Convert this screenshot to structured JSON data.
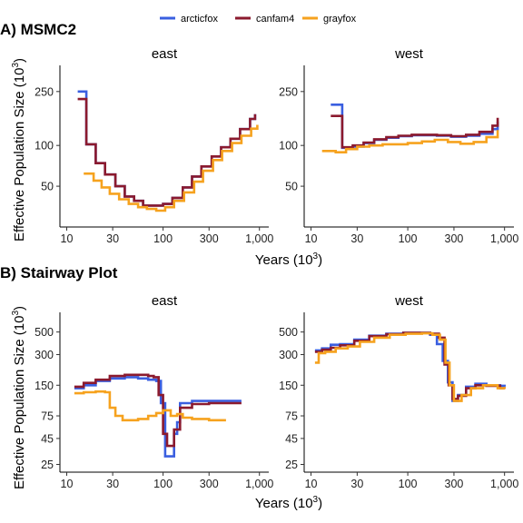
{
  "legend": {
    "items": [
      {
        "name": "arcticfox",
        "color": "#3a5fe0"
      },
      {
        "name": "canfam4",
        "color": "#8b1a2e"
      },
      {
        "name": "grayfox",
        "color": "#f6a21e"
      }
    ]
  },
  "panels": [
    {
      "label": "A) MSMC2",
      "y_label_main": "Effective Population Size (10",
      "y_label_exp": "3",
      "y_label_end": ")"
    },
    {
      "label": "B) Stairway Plot",
      "y_label_main": "Effective Population Size (10",
      "y_label_exp": "3",
      "y_label_end": ")"
    }
  ],
  "x_axis_label": {
    "main": "Years (10",
    "exp": "3",
    "end": ")"
  },
  "chart_data": [
    {
      "type": "line",
      "panel": "A) MSMC2",
      "facet": "east",
      "x_scale": "log",
      "y_scale": "log",
      "xlim": [
        8.5,
        1250
      ],
      "ylim": [
        25,
        390
      ],
      "x_ticks": [
        10,
        30,
        100,
        300,
        1000
      ],
      "x_tick_labels": [
        "10",
        "30",
        "100",
        "300",
        "1,000"
      ],
      "y_ticks": [
        50,
        100,
        250
      ],
      "y_tick_labels": [
        "50",
        "100",
        "250"
      ],
      "series": [
        {
          "name": "arcticfox",
          "color": "#3a5fe0",
          "step": true,
          "x": [
            13,
            16,
            20,
            25,
            32,
            40,
            50,
            62,
            80,
            100,
            125,
            160,
            200,
            250,
            320,
            400,
            500,
            630,
            800,
            900
          ],
          "y": [
            250,
            102,
            74,
            61,
            50,
            42,
            39,
            36,
            36,
            37,
            41,
            49,
            59,
            70,
            83,
            97,
            112,
            132,
            157,
            170
          ]
        },
        {
          "name": "canfam4",
          "color": "#8b1a2e",
          "step": true,
          "x": [
            13,
            16,
            20,
            25,
            32,
            40,
            50,
            62,
            80,
            100,
            125,
            160,
            200,
            250,
            320,
            400,
            500,
            630,
            800,
            900
          ],
          "y": [
            220,
            102,
            74,
            61,
            50,
            42,
            39,
            36,
            36,
            37,
            41,
            49,
            59,
            70,
            83,
            97,
            112,
            132,
            157,
            170
          ]
        },
        {
          "name": "grayfox",
          "color": "#f6a21e",
          "step": true,
          "x": [
            15,
            19,
            23,
            28,
            35,
            44,
            55,
            68,
            85,
            105,
            130,
            165,
            210,
            260,
            330,
            410,
            520,
            650,
            820,
            950
          ],
          "y": [
            62,
            55,
            49,
            44,
            40,
            37,
            35,
            34,
            33,
            35,
            39,
            45,
            54,
            65,
            78,
            91,
            104,
            118,
            133,
            142
          ]
        }
      ]
    },
    {
      "type": "line",
      "panel": "A) MSMC2",
      "facet": "west",
      "x_scale": "log",
      "y_scale": "log",
      "xlim": [
        8.5,
        1250
      ],
      "ylim": [
        25,
        390
      ],
      "x_ticks": [
        10,
        30,
        100,
        300,
        1000
      ],
      "x_tick_labels": [
        "10",
        "30",
        "100",
        "300",
        "1,000"
      ],
      "y_ticks": [
        50,
        100,
        250
      ],
      "y_tick_labels": [
        "50",
        "100",
        "250"
      ],
      "series": [
        {
          "name": "arcticfox",
          "color": "#3a5fe0",
          "step": true,
          "x": [
            16,
            21,
            27,
            35,
            45,
            60,
            80,
            110,
            150,
            200,
            280,
            400,
            550,
            750,
            850
          ],
          "y": [
            200,
            96,
            98,
            104,
            110,
            114,
            117,
            119,
            119,
            118,
            116,
            118,
            122,
            132,
            150
          ]
        },
        {
          "name": "canfam4",
          "color": "#8b1a2e",
          "step": true,
          "x": [
            16,
            21,
            27,
            35,
            45,
            60,
            80,
            110,
            150,
            200,
            280,
            400,
            550,
            750,
            850
          ],
          "y": [
            165,
            97,
            100,
            105,
            111,
            115,
            118,
            120,
            120,
            119,
            117,
            120,
            126,
            140,
            160
          ]
        },
        {
          "name": "grayfox",
          "color": "#f6a21e",
          "step": true,
          "x": [
            13,
            18,
            23,
            30,
            40,
            55,
            75,
            100,
            140,
            190,
            260,
            350,
            480,
            650,
            850
          ],
          "y": [
            91,
            89,
            94,
            98,
            100,
            102,
            102,
            104,
            107,
            110,
            106,
            103,
            106,
            115,
            130
          ]
        }
      ]
    },
    {
      "type": "line",
      "panel": "B) Stairway Plot",
      "facet": "east",
      "x_scale": "log",
      "y_scale": "log",
      "xlim": [
        8.5,
        1250
      ],
      "ylim": [
        21,
        780
      ],
      "x_ticks": [
        10,
        30,
        100,
        300,
        1000
      ],
      "x_tick_labels": [
        "10",
        "30",
        "100",
        "300",
        "1,000"
      ],
      "y_ticks": [
        25,
        45,
        75,
        150,
        300,
        500
      ],
      "y_tick_labels": [
        "25",
        "45",
        "75",
        "150",
        "300",
        "500"
      ],
      "series": [
        {
          "name": "arcticfox",
          "color": "#3a5fe0",
          "step": true,
          "x": [
            12,
            15,
            20,
            28,
            40,
            55,
            70,
            85,
            95,
            105,
            115,
            130,
            140,
            150,
            200,
            300,
            400,
            650
          ],
          "y": [
            140,
            150,
            165,
            175,
            180,
            175,
            170,
            165,
            100,
            30,
            30,
            50,
            65,
            100,
            105,
            105,
            105,
            105
          ]
        },
        {
          "name": "canfam4",
          "color": "#8b1a2e",
          "step": true,
          "x": [
            12,
            15,
            20,
            28,
            40,
            55,
            70,
            80,
            90,
            100,
            110,
            120,
            130,
            150,
            200,
            300,
            400,
            650
          ],
          "y": [
            145,
            158,
            170,
            185,
            190,
            190,
            185,
            180,
            120,
            50,
            38,
            38,
            55,
            90,
            98,
            100,
            100,
            100
          ]
        },
        {
          "name": "grayfox",
          "color": "#f6a21e",
          "step": true,
          "x": [
            12,
            15,
            20,
            25,
            28,
            32,
            38,
            45,
            55,
            70,
            85,
            100,
            120,
            140,
            160,
            200,
            300,
            450
          ],
          "y": [
            125,
            128,
            130,
            128,
            90,
            75,
            68,
            68,
            70,
            75,
            80,
            85,
            75,
            78,
            72,
            70,
            68,
            68
          ]
        }
      ]
    },
    {
      "type": "line",
      "panel": "B) Stairway Plot",
      "facet": "west",
      "x_scale": "log",
      "y_scale": "log",
      "xlim": [
        8.5,
        1250
      ],
      "ylim": [
        21,
        780
      ],
      "x_ticks": [
        10,
        30,
        100,
        300,
        1000
      ],
      "x_tick_labels": [
        "10",
        "30",
        "100",
        "300",
        "1,000"
      ],
      "y_ticks": [
        25,
        45,
        75,
        150,
        300,
        500
      ],
      "y_tick_labels": [
        "25",
        "45",
        "75",
        "150",
        "300",
        "500"
      ],
      "series": [
        {
          "name": "arcticfox",
          "color": "#3a5fe0",
          "step": true,
          "x": [
            11,
            13,
            16,
            20,
            28,
            40,
            60,
            90,
            130,
            170,
            200,
            230,
            260,
            290,
            330,
            400,
            500,
            650,
            900,
            1000
          ],
          "y": [
            330,
            345,
            375,
            380,
            420,
            460,
            480,
            490,
            490,
            470,
            380,
            260,
            160,
            105,
            120,
            145,
            155,
            150,
            148,
            145
          ]
        },
        {
          "name": "canfam4",
          "color": "#8b1a2e",
          "step": true,
          "x": [
            11,
            13,
            16,
            20,
            28,
            40,
            60,
            90,
            130,
            170,
            210,
            240,
            265,
            290,
            330,
            400,
            500,
            650,
            900,
            1000
          ],
          "y": [
            320,
            335,
            350,
            370,
            410,
            455,
            475,
            490,
            490,
            480,
            440,
            240,
            150,
            110,
            118,
            140,
            150,
            148,
            140,
            138
          ]
        },
        {
          "name": "grayfox",
          "color": "#f6a21e",
          "step": true,
          "x": [
            11,
            12,
            14,
            18,
            24,
            32,
            45,
            65,
            95,
            140,
            180,
            215,
            245,
            270,
            300,
            360,
            450,
            600,
            850,
            1000
          ],
          "y": [
            250,
            310,
            320,
            345,
            360,
            400,
            440,
            470,
            480,
            485,
            470,
            420,
            250,
            150,
            105,
            120,
            140,
            150,
            140,
            138
          ]
        }
      ]
    }
  ]
}
